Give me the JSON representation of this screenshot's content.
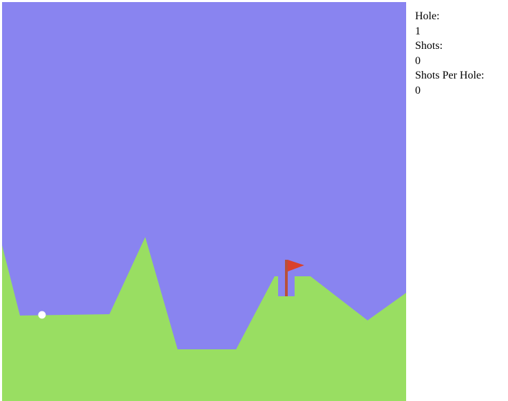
{
  "stats": {
    "hole_label": "Hole:",
    "hole_value": "1",
    "shots_label": "Shots:",
    "shots_value": "0",
    "shots_per_hole_label": "Shots Per Hole:",
    "shots_per_hole_value": "0"
  },
  "colors": {
    "sky": "#8984f0",
    "ground": "#99de62",
    "flag": "#d9412e",
    "pole": "#b8503a",
    "ball": "#ffffff"
  }
}
